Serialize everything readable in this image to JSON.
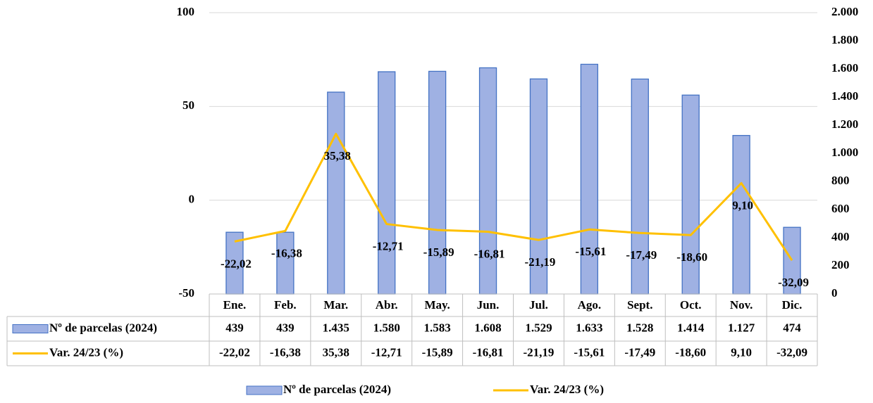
{
  "chart_data": {
    "type": "bar",
    "categories": [
      "Ene.",
      "Feb.",
      "Mar.",
      "Abr.",
      "May.",
      "Jun.",
      "Jul.",
      "Ago.",
      "Sept.",
      "Oct.",
      "Nov.",
      "Dic."
    ],
    "series": [
      {
        "name": "Nº de parcelas (2024)",
        "type": "bar",
        "axis": "y2",
        "color": "#9fb1e3",
        "values": [
          439,
          439,
          1435,
          1580,
          1583,
          1608,
          1529,
          1633,
          1528,
          1414,
          1127,
          474
        ],
        "value_labels": [
          "439",
          "439",
          "1.435",
          "1.580",
          "1.583",
          "1.608",
          "1.529",
          "1.633",
          "1.528",
          "1.414",
          "1.127",
          "474"
        ]
      },
      {
        "name": "Var. 24/23 (%)",
        "type": "line",
        "color": "#ffc000",
        "values": [
          -22.02,
          -16.38,
          35.38,
          -12.71,
          -15.89,
          -16.81,
          -21.19,
          -15.61,
          -17.49,
          -18.6,
          9.1,
          -32.09
        ],
        "value_labels": [
          "-22,02",
          "-16,38",
          "35,38",
          "-12,71",
          "-15,89",
          "-16,81",
          "-21,19",
          "-15,61",
          "-17,49",
          "-18,60",
          "9,10",
          "-32,09"
        ]
      }
    ],
    "ylim": [
      -50,
      100
    ],
    "yticks": [
      -50,
      0,
      50,
      100
    ],
    "y2lim": [
      0,
      2000
    ],
    "y2ticks": [
      0,
      200,
      400,
      600,
      800,
      {
        "value": 1000,
        "label": "1.000"
      },
      {
        "value": 1200,
        "label": "1.200"
      },
      {
        "value": 1400,
        "label": "1.400"
      },
      {
        "value": 1600,
        "label": "1.600"
      },
      {
        "value": 1800,
        "label": "1.800"
      },
      {
        "value": 2000,
        "label": "2.000"
      }
    ],
    "grid": true,
    "legend": "bottom"
  }
}
